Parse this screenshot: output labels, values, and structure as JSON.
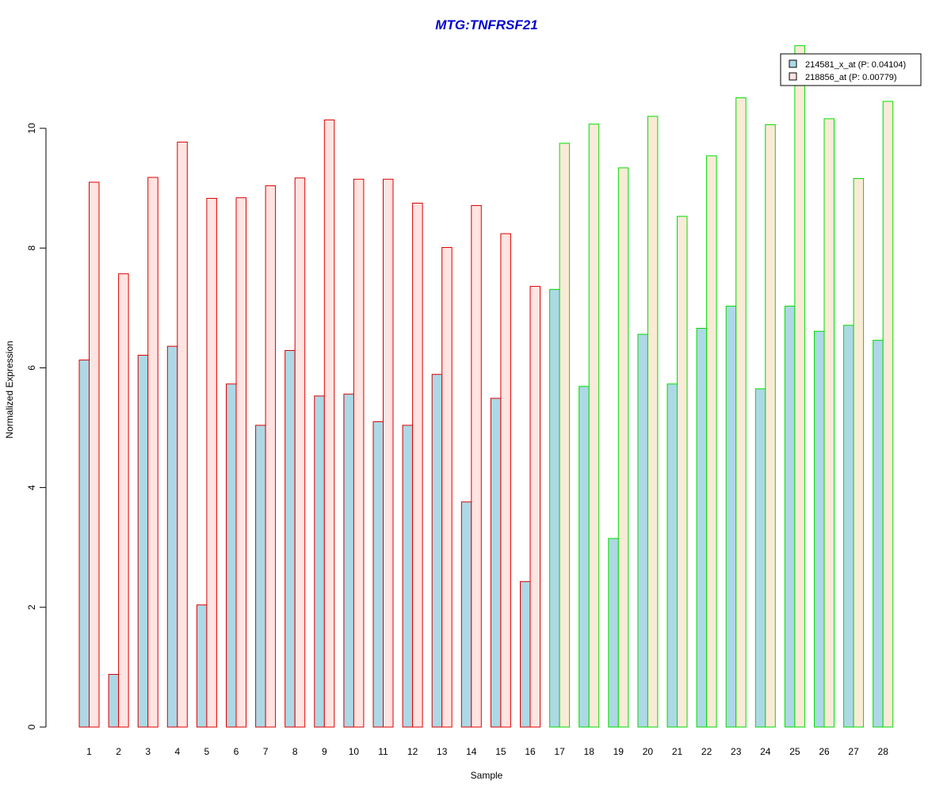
{
  "chart_data": {
    "type": "bar",
    "title": "MTG:TNFRSF21",
    "title_color": "#0000CC",
    "xlabel": "Sample",
    "ylabel": "Normalized Expression",
    "ylim": [
      0,
      11.5
    ],
    "yticks": [
      0,
      2,
      4,
      6,
      8,
      10
    ],
    "grid": false,
    "legend_position": "top-right",
    "categories": [
      "1",
      "2",
      "3",
      "4",
      "5",
      "6",
      "7",
      "8",
      "9",
      "10",
      "11",
      "12",
      "13",
      "14",
      "15",
      "16",
      "17",
      "18",
      "19",
      "20",
      "21",
      "22",
      "23",
      "24",
      "25",
      "26",
      "27",
      "28"
    ],
    "group_border_colors": {
      "group1": "#DD0000",
      "group2": "#00DD00",
      "group1_samples": 16
    },
    "series": [
      {
        "name": "214581_x_at (P: 0.04104)",
        "fill": "#ADD8E6",
        "values": [
          6.13,
          0.88,
          6.21,
          6.36,
          2.04,
          5.73,
          5.04,
          6.29,
          5.53,
          5.56,
          5.1,
          5.04,
          5.89,
          3.76,
          5.49,
          2.43,
          7.31,
          5.69,
          3.15,
          6.56,
          5.73,
          6.66,
          7.03,
          5.65,
          7.03,
          6.61,
          6.71,
          6.46
        ]
      },
      {
        "name": "218856_at (P: 0.00779)",
        "fill": "#FFE4E1",
        "fill_group2": "#FAEBD7",
        "values": [
          9.1,
          7.57,
          9.18,
          9.77,
          8.83,
          8.84,
          9.04,
          9.17,
          10.14,
          9.15,
          9.15,
          8.75,
          8.01,
          8.71,
          8.24,
          7.36,
          9.75,
          10.07,
          9.34,
          10.2,
          8.53,
          9.54,
          10.51,
          10.06,
          11.38,
          10.16,
          9.16,
          10.45
        ]
      }
    ]
  }
}
